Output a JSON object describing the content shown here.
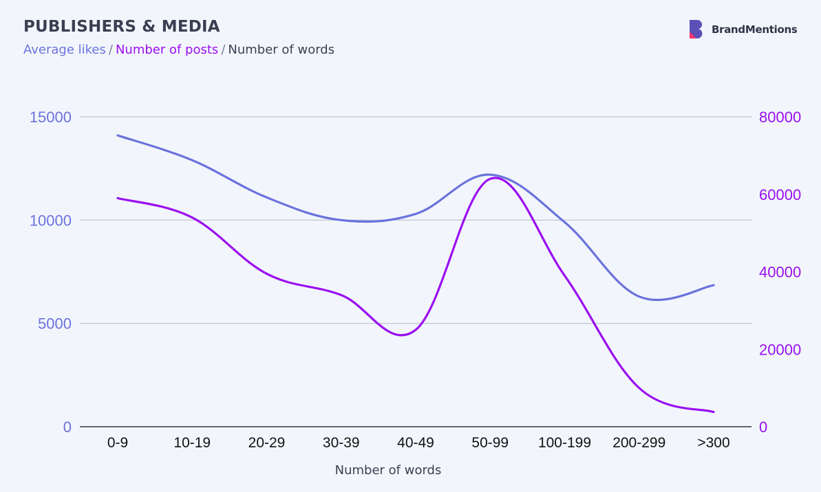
{
  "header": {
    "title": "PUBLISHERS & MEDIA",
    "subtitle_parts": [
      "Average likes",
      "Number of posts",
      "Number of words"
    ],
    "separator": "/",
    "brand_name": "BrandMentions"
  },
  "colors": {
    "likes": "#6b72dc",
    "posts": "#9b0ff0",
    "words": "#3a3f52",
    "grid": "#c4c8d3",
    "brand_dark": "#5b4fb8",
    "brand_accent": "#f0366a"
  },
  "chart_data": {
    "type": "line",
    "categories": [
      "0-9",
      "10-19",
      "20-29",
      "30-39",
      "40-49",
      "50-99",
      "100-199",
      "200-299",
      ">300"
    ],
    "xlabel": "Number of words",
    "y_left": {
      "ylim": [
        0,
        15000
      ],
      "ticks": [
        "0",
        "5000",
        "10000",
        "15000"
      ]
    },
    "y_right": {
      "ylim": [
        0,
        80000
      ],
      "ticks": [
        "0",
        "20000",
        "40000",
        "60000",
        "80000"
      ]
    },
    "grid": true,
    "series": [
      {
        "name": "Average likes",
        "axis": "left",
        "values": [
          14100,
          12900,
          11100,
          10000,
          10300,
          12200,
          9900,
          6300,
          6850
        ]
      },
      {
        "name": "Number of posts",
        "axis": "right",
        "values": [
          59000,
          54000,
          39500,
          34000,
          25000,
          64000,
          39000,
          10000,
          3800
        ]
      }
    ]
  }
}
